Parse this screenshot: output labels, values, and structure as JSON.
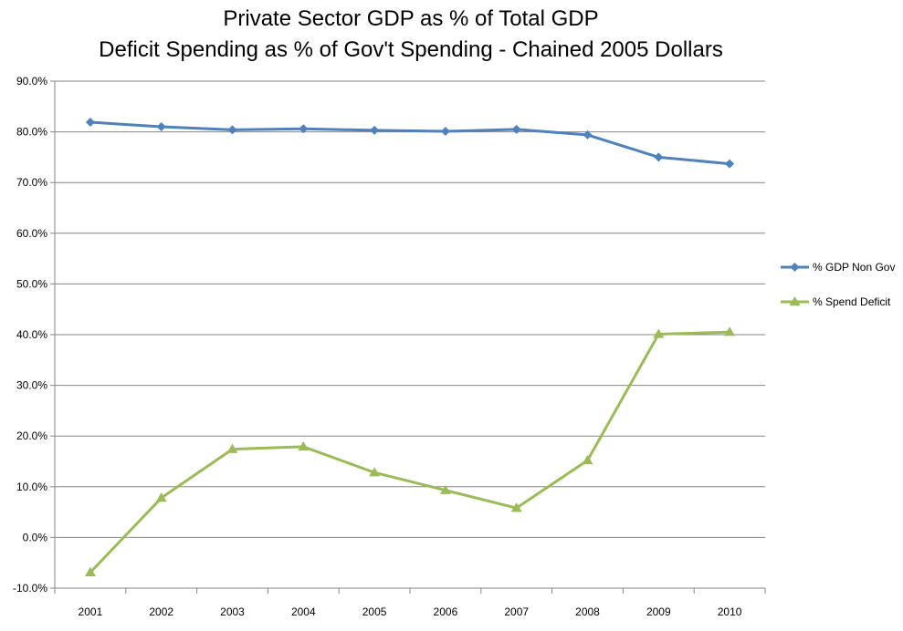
{
  "chart_data": {
    "type": "line",
    "title": "Private Sector GDP as % of Total GDP",
    "subtitle": "Deficit Spending as % of Gov't Spending - Chained 2005 Dollars",
    "categories": [
      "2001",
      "2002",
      "2003",
      "2004",
      "2005",
      "2006",
      "2007",
      "2008",
      "2009",
      "2010"
    ],
    "series": [
      {
        "name": "% GDP Non Gov",
        "color": "#4f81bd",
        "marker": "diamond",
        "values": [
          81.9,
          81.0,
          80.4,
          80.6,
          80.3,
          80.1,
          80.5,
          79.4,
          75.0,
          73.7
        ]
      },
      {
        "name": "% Spend Deficit",
        "color": "#9bbb59",
        "marker": "triangle",
        "values": [
          -6.9,
          7.8,
          17.4,
          17.9,
          12.8,
          9.3,
          5.8,
          15.2,
          40.1,
          40.5
        ]
      }
    ],
    "y_ticks": [
      "90.0%",
      "80.0%",
      "70.0%",
      "60.0%",
      "50.0%",
      "40.0%",
      "30.0%",
      "20.0%",
      "10.0%",
      "0.0%",
      "-10.0%"
    ],
    "ylim": [
      -10,
      90
    ],
    "y_unit": "%",
    "grid": true,
    "legend_position": "right"
  }
}
